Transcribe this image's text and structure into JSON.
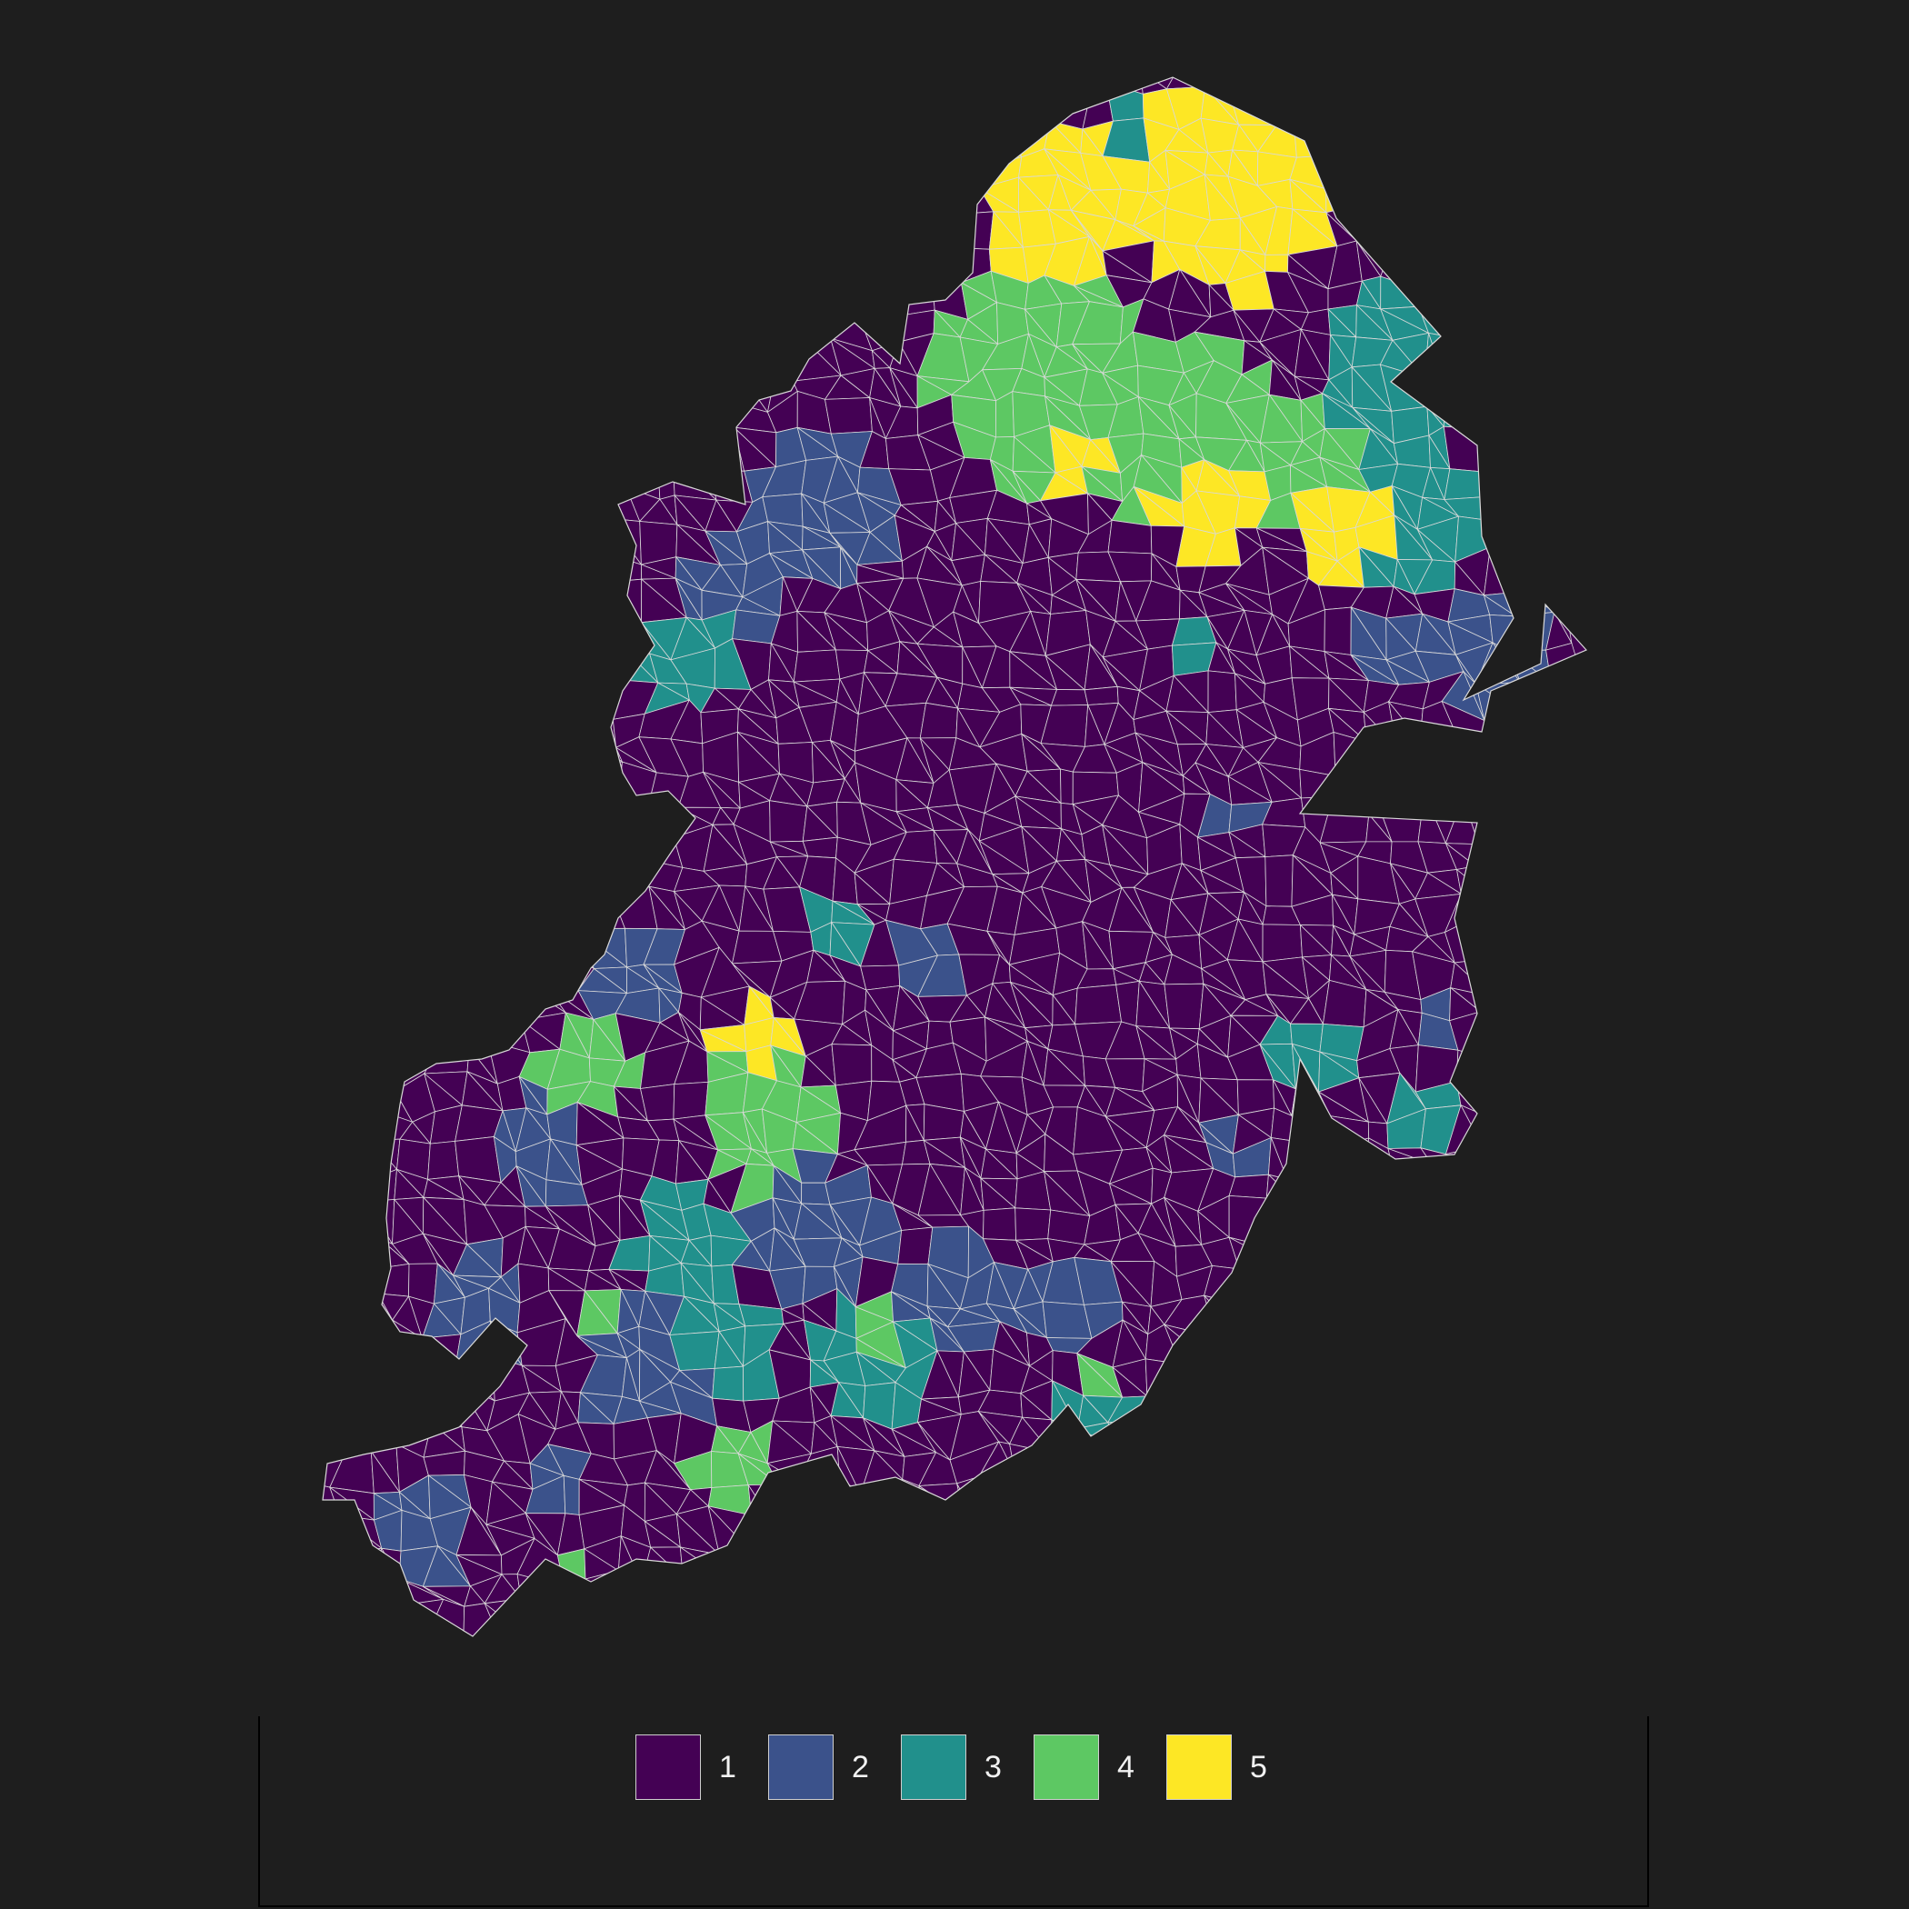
{
  "map": {
    "background": "#1e1e1e",
    "border_color": "#d9d9d9",
    "classes": [
      {
        "value": 1,
        "label": "1",
        "color": "#440154"
      },
      {
        "value": 2,
        "label": "2",
        "color": "#3b528b"
      },
      {
        "value": 3,
        "label": "3",
        "color": "#21908c"
      },
      {
        "value": 4,
        "label": "4",
        "color": "#5dc863"
      },
      {
        "value": 5,
        "label": "5",
        "color": "#fde725"
      }
    ],
    "legend": {
      "placement": "bottom",
      "labels": [
        "1",
        "2",
        "3",
        "4",
        "5"
      ]
    }
  }
}
